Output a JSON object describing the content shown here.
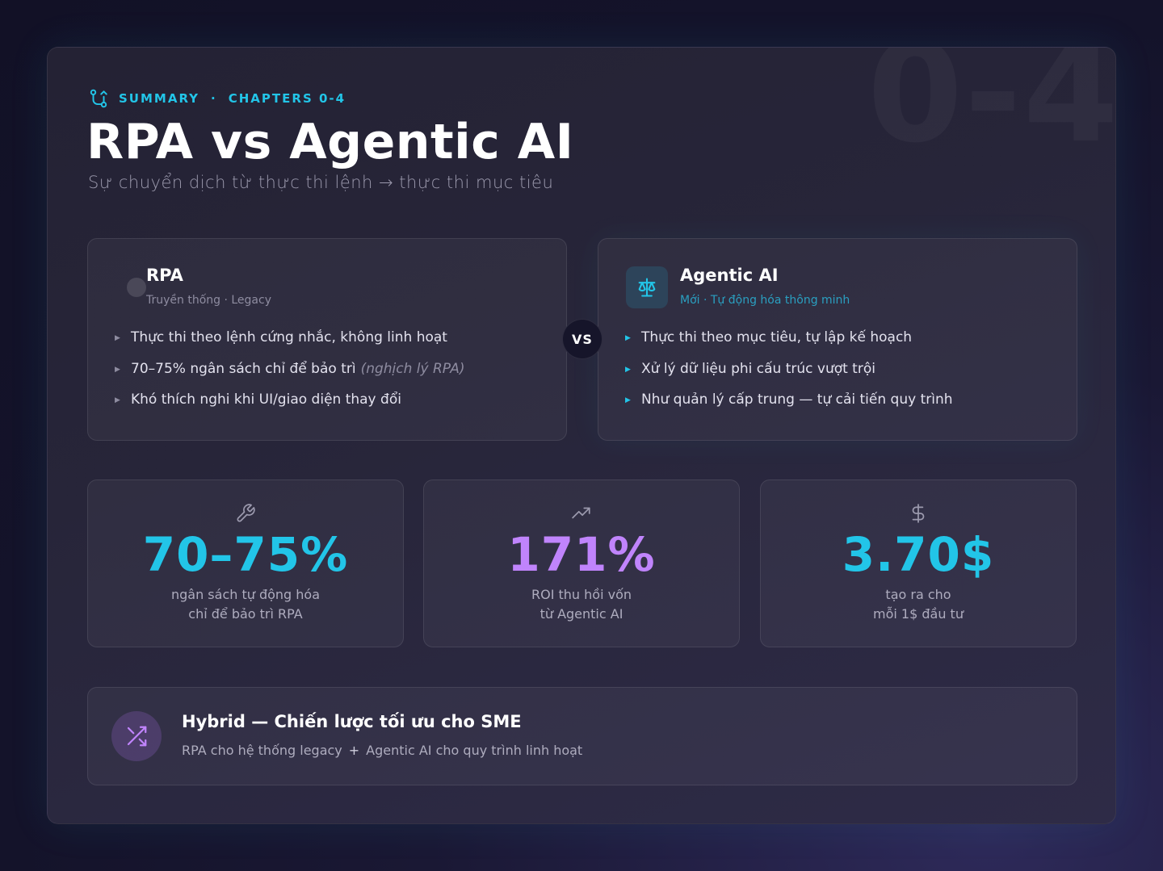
{
  "header": {
    "watermark": "0-4",
    "eyebrow_left": "SUMMARY",
    "eyebrow_sep": "·",
    "eyebrow_right": "CHAPTERS 0-4",
    "eyebrow_icon": "git-branch-icon",
    "title": "RPA vs Agentic AI",
    "subtitle": "Sự chuyển dịch từ thực thi lệnh → thực thi mục tiêu"
  },
  "comparison": {
    "vs_label": "VS",
    "rpa": {
      "title": "RPA",
      "subtitle": "Truyền thống · Legacy",
      "items": [
        "Thực thi theo lệnh cứng nhắc, không linh hoạt",
        "70–75% ngân sách chỉ để bảo trì",
        "Khó thích nghi khi UI/giao diện thay đổi"
      ],
      "item2_note": "(nghịch lý RPA)"
    },
    "agentic": {
      "title": "Agentic AI",
      "subtitle": "Mới · Tự động hóa thông minh",
      "icon": "scale-icon",
      "items": [
        "Thực thi theo mục tiêu, tự lập kế hoạch",
        "Xử lý dữ liệu phi cấu trúc vượt trội",
        "Như quản lý cấp trung — tự cải tiến quy trình"
      ]
    }
  },
  "stats": [
    {
      "icon": "wrench-icon",
      "value": "70–75%",
      "line1": "ngân sách tự động hóa",
      "line2": "chỉ để bảo trì RPA",
      "color": "#22c5e8"
    },
    {
      "icon": "trending-up-icon",
      "value": "171%",
      "line1": "ROI thu hồi vốn",
      "line2": "từ Agentic AI",
      "color": "#c084fc"
    },
    {
      "icon": "dollar-icon",
      "value": "3.70$",
      "line1": "tạo ra cho",
      "line2": "mỗi 1$ đầu tư",
      "color": "#22c5e8"
    }
  ],
  "hybrid": {
    "icon": "shuffle-icon",
    "title": "Hybrid — Chiến lược tối ưu cho SME",
    "part1": "RPA cho hệ thống legacy",
    "plus": "+",
    "part2": "Agentic AI cho quy trình linh hoạt"
  }
}
